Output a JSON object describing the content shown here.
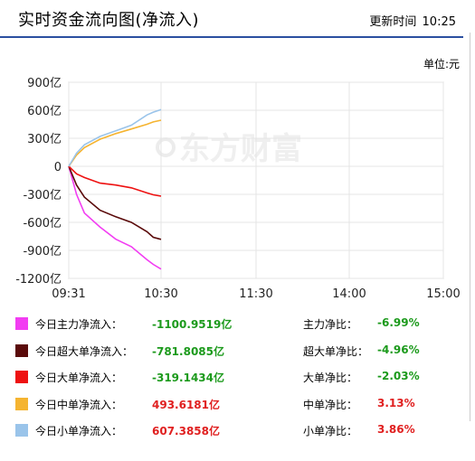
{
  "header": {
    "title": "实时资金流向图(净流入)",
    "update_label": "更新时间",
    "update_time": "10:25"
  },
  "unit_label": "单位:元",
  "watermark": "东方财富",
  "chart_data": {
    "type": "line",
    "title": "实时资金流向图(净流入)",
    "ylabel": "单位:元",
    "ylim": [
      -1200,
      900
    ],
    "yticks": [
      "900亿",
      "600亿",
      "300亿",
      "0",
      "-300亿",
      "-600亿",
      "-900亿",
      "-1200亿"
    ],
    "ytick_values": [
      900,
      600,
      300,
      0,
      -300,
      -600,
      -900,
      -1200
    ],
    "xticks": [
      "09:31",
      "10:30",
      "11:30",
      "14:00",
      "15:00"
    ],
    "grid": true,
    "series": [
      {
        "name": "今日主力净流入",
        "color": "#f23df2",
        "x": [
          0,
          5,
          10,
          20,
          30,
          40,
          50,
          54,
          59
        ],
        "values": [
          0,
          -300,
          -500,
          -650,
          -780,
          -860,
          -1000,
          -1050,
          -1100
        ]
      },
      {
        "name": "今日超大单净流入",
        "color": "#5a0a0a",
        "x": [
          0,
          5,
          10,
          20,
          30,
          40,
          50,
          54,
          59
        ],
        "values": [
          0,
          -200,
          -330,
          -470,
          -540,
          -600,
          -700,
          -760,
          -782
        ]
      },
      {
        "name": "今日大单净流入",
        "color": "#ee1111",
        "x": [
          0,
          5,
          10,
          20,
          30,
          40,
          50,
          54,
          59
        ],
        "values": [
          0,
          -80,
          -120,
          -180,
          -200,
          -230,
          -285,
          -305,
          -319
        ]
      },
      {
        "name": "今日中单净流入",
        "color": "#f5b431",
        "x": [
          0,
          5,
          10,
          20,
          30,
          40,
          50,
          54,
          59
        ],
        "values": [
          0,
          120,
          200,
          290,
          350,
          400,
          450,
          475,
          494
        ]
      },
      {
        "name": "今日小单净流入",
        "color": "#9ac4ea",
        "x": [
          0,
          5,
          10,
          20,
          30,
          40,
          50,
          54,
          59
        ],
        "values": [
          0,
          140,
          230,
          320,
          380,
          440,
          550,
          580,
          607
        ]
      }
    ]
  },
  "legend": [
    {
      "label": "今日主力净流入：",
      "value": "-1100.9519亿",
      "value_tone": "green",
      "ratio_label": "主力净比：",
      "ratio": "-6.99%",
      "ratio_tone": "green",
      "color": "#f23df2"
    },
    {
      "label": "今日超大单净流入：",
      "value": "-781.8085亿",
      "value_tone": "green",
      "ratio_label": "超大单净比：",
      "ratio": "-4.96%",
      "ratio_tone": "green",
      "color": "#5a0a0a"
    },
    {
      "label": "今日大单净流入：",
      "value": "-319.1434亿",
      "value_tone": "green",
      "ratio_label": "大单净比：",
      "ratio": "-2.03%",
      "ratio_tone": "green",
      "color": "#ee1111"
    },
    {
      "label": "今日中单净流入：",
      "value": "493.6181亿",
      "value_tone": "red",
      "ratio_label": "中单净比：",
      "ratio": "3.13%",
      "ratio_tone": "red",
      "color": "#f5b431"
    },
    {
      "label": "今日小单净流入：",
      "value": "607.3858亿",
      "value_tone": "red",
      "ratio_label": "小单净比：",
      "ratio": "3.86%",
      "ratio_tone": "red",
      "color": "#9ac4ea"
    }
  ]
}
